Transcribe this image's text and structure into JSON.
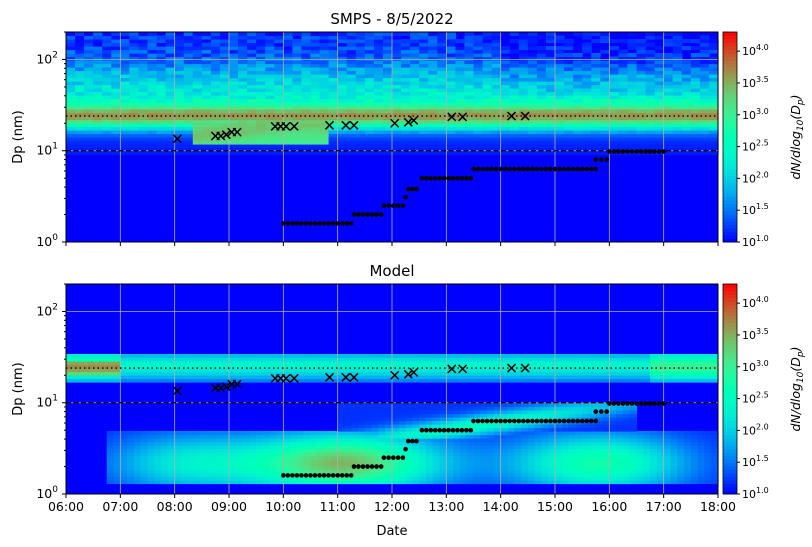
{
  "chart_data": [
    {
      "type": "heatmap",
      "title": "SMPS  -  8/5/2022",
      "xlabel": "",
      "ylabel": "Dp (nm)",
      "yscale": "log",
      "ylim": [
        1,
        200
      ],
      "xlim": [
        "06:00",
        "18:00"
      ],
      "x_ticks": [
        "06:00",
        "07:00",
        "08:00",
        "09:00",
        "10:00",
        "11:00",
        "12:00",
        "13:00",
        "14:00",
        "15:00",
        "16:00",
        "17:00",
        "18:00"
      ],
      "y_ticks": [
        "10^0",
        "10^1",
        "10^2"
      ],
      "grid": true,
      "colorbar": {
        "label": "dN/dlog10(Dp)",
        "scale": "log",
        "range": [
          10,
          20000
        ],
        "ticks": [
          "10^1.0",
          "10^1.5",
          "10^2.0",
          "10^2.5",
          "10^3.0",
          "10^3.5",
          "10^4.0"
        ]
      },
      "reference_lines": [
        {
          "style": "dotted",
          "y": 24
        },
        {
          "style": "dashed",
          "y": 10
        }
      ],
      "mode_diameter_markers": {
        "marker": "x",
        "points": [
          [
            8.05,
            13.5
          ],
          [
            8.75,
            14.5
          ],
          [
            8.85,
            14.5
          ],
          [
            8.95,
            15
          ],
          [
            9.05,
            16
          ],
          [
            9.15,
            16
          ],
          [
            9.85,
            18.5
          ],
          [
            9.95,
            18.5
          ],
          [
            10.05,
            18.5
          ],
          [
            10.2,
            18.5
          ],
          [
            10.85,
            19
          ],
          [
            11.15,
            19
          ],
          [
            11.3,
            19
          ],
          [
            12.05,
            20
          ],
          [
            12.3,
            20.5
          ],
          [
            12.4,
            21.5
          ],
          [
            13.1,
            23.5
          ],
          [
            13.3,
            23.5
          ],
          [
            14.2,
            24
          ],
          [
            14.45,
            24
          ]
        ]
      },
      "growth_points": {
        "marker": "dot",
        "segments": [
          {
            "x_start": 10.0,
            "x_end": 11.25,
            "y": 1.6
          },
          {
            "x_start": 11.3,
            "x_end": 11.8,
            "y": 2.0
          },
          {
            "x_start": 11.85,
            "x_end": 12.2,
            "y": 2.5
          },
          {
            "x_start": 12.25,
            "x_end": 12.25,
            "y": 3.1
          },
          {
            "x_start": 12.3,
            "x_end": 12.45,
            "y": 3.8
          },
          {
            "x_start": 12.55,
            "x_end": 13.45,
            "y": 5.0
          },
          {
            "x_start": 13.5,
            "x_end": 15.75,
            "y": 6.3
          },
          {
            "x_start": 15.75,
            "x_end": 15.95,
            "y": 8.0
          },
          {
            "x_start": 16.0,
            "x_end": 17.0,
            "y": 9.8
          }
        ]
      }
    },
    {
      "type": "heatmap",
      "title": "Model",
      "xlabel": "Date",
      "ylabel": "Dp (nm)",
      "yscale": "log",
      "ylim": [
        1,
        200
      ],
      "xlim": [
        "06:00",
        "18:00"
      ],
      "x_ticks": [
        "06:00",
        "07:00",
        "08:00",
        "09:00",
        "10:00",
        "11:00",
        "12:00",
        "13:00",
        "14:00",
        "15:00",
        "16:00",
        "17:00",
        "18:00"
      ],
      "y_ticks": [
        "10^0",
        "10^1",
        "10^2"
      ],
      "grid": true,
      "colorbar": {
        "label": "dN/dlog10(Dp)",
        "scale": "log",
        "range": [
          10,
          20000
        ],
        "ticks": [
          "10^1.0",
          "10^1.5",
          "10^2.0",
          "10^2.5",
          "10^3.0",
          "10^3.5",
          "10^4.0"
        ]
      },
      "reference_lines": [
        {
          "style": "dotted",
          "y": 24
        },
        {
          "style": "dashed",
          "y": 10
        }
      ],
      "mode_diameter_markers": {
        "marker": "x",
        "points": [
          [
            8.05,
            13.5
          ],
          [
            8.75,
            14.5
          ],
          [
            8.85,
            14.5
          ],
          [
            8.95,
            15
          ],
          [
            9.05,
            16
          ],
          [
            9.15,
            16
          ],
          [
            9.85,
            18.5
          ],
          [
            9.95,
            18.5
          ],
          [
            10.05,
            18.5
          ],
          [
            10.2,
            18.5
          ],
          [
            10.85,
            19
          ],
          [
            11.15,
            19
          ],
          [
            11.3,
            19
          ],
          [
            12.05,
            20
          ],
          [
            12.3,
            20.5
          ],
          [
            12.4,
            21.5
          ],
          [
            13.1,
            23.5
          ],
          [
            13.3,
            23.5
          ],
          [
            14.2,
            24
          ],
          [
            14.45,
            24
          ]
        ]
      },
      "growth_points": {
        "marker": "dot",
        "segments": [
          {
            "x_start": 10.0,
            "x_end": 11.25,
            "y": 1.6
          },
          {
            "x_start": 11.3,
            "x_end": 11.8,
            "y": 2.0
          },
          {
            "x_start": 11.85,
            "x_end": 12.2,
            "y": 2.5
          },
          {
            "x_start": 12.25,
            "x_end": 12.25,
            "y": 3.1
          },
          {
            "x_start": 12.3,
            "x_end": 12.45,
            "y": 3.8
          },
          {
            "x_start": 12.55,
            "x_end": 13.45,
            "y": 5.0
          },
          {
            "x_start": 13.5,
            "x_end": 15.75,
            "y": 6.3
          },
          {
            "x_start": 15.75,
            "x_end": 15.95,
            "y": 8.0
          },
          {
            "x_start": 16.0,
            "x_end": 17.0,
            "y": 9.8
          }
        ]
      }
    }
  ]
}
